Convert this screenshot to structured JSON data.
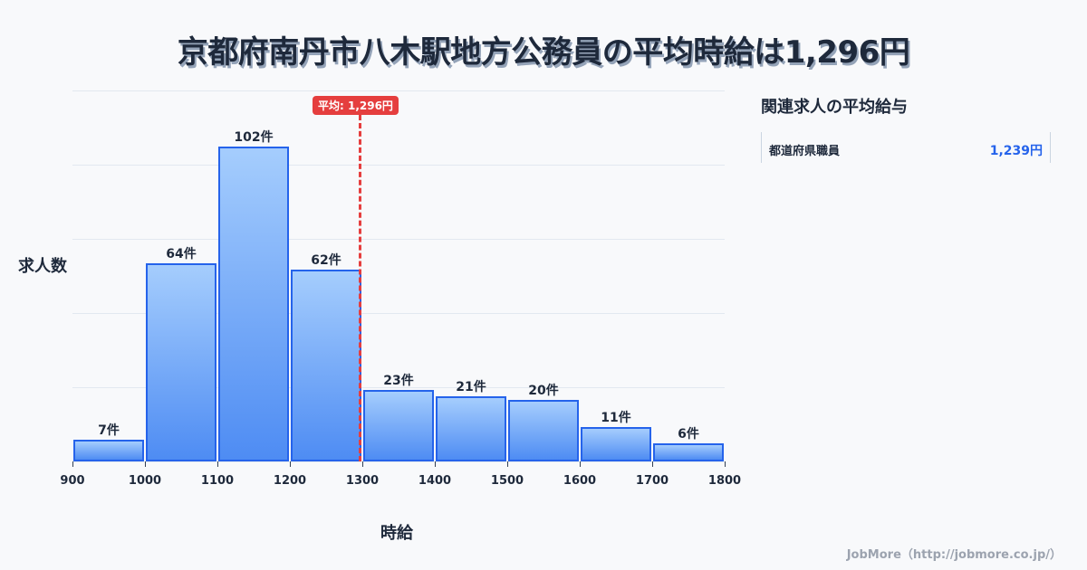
{
  "title": "京都府南丹市八木駅地方公務員の平均時給は1,296円",
  "chart_data": {
    "type": "bar",
    "title": "京都府南丹市八木駅地方公務員の平均時給は1,296円",
    "xlabel": "時給",
    "ylabel": "求人数",
    "categories": [
      "900-1000",
      "1000-1100",
      "1100-1200",
      "1200-1300",
      "1300-1400",
      "1400-1500",
      "1500-1600",
      "1600-1700",
      "1700-1800"
    ],
    "values": [
      7,
      64,
      102,
      62,
      23,
      21,
      20,
      11,
      6
    ],
    "value_labels": [
      "7件",
      "64件",
      "102件",
      "62件",
      "23件",
      "21件",
      "20件",
      "11件",
      "6件"
    ],
    "x_ticks": [
      "900",
      "1000",
      "1100",
      "1200",
      "1300",
      "1400",
      "1500",
      "1600",
      "1700",
      "1800"
    ],
    "ylim": [
      0,
      120
    ],
    "grid": true,
    "average": {
      "value": 1296,
      "label": "平均: 1,296円",
      "color": "#e53e3e"
    },
    "bar_color": "#2563eb"
  },
  "side_panel": {
    "title": "関連求人の平均給与",
    "items": [
      {
        "name": "都道府県職員",
        "value": "1,239円"
      }
    ]
  },
  "footer": "JobMore（http://jobmore.co.jp/）"
}
